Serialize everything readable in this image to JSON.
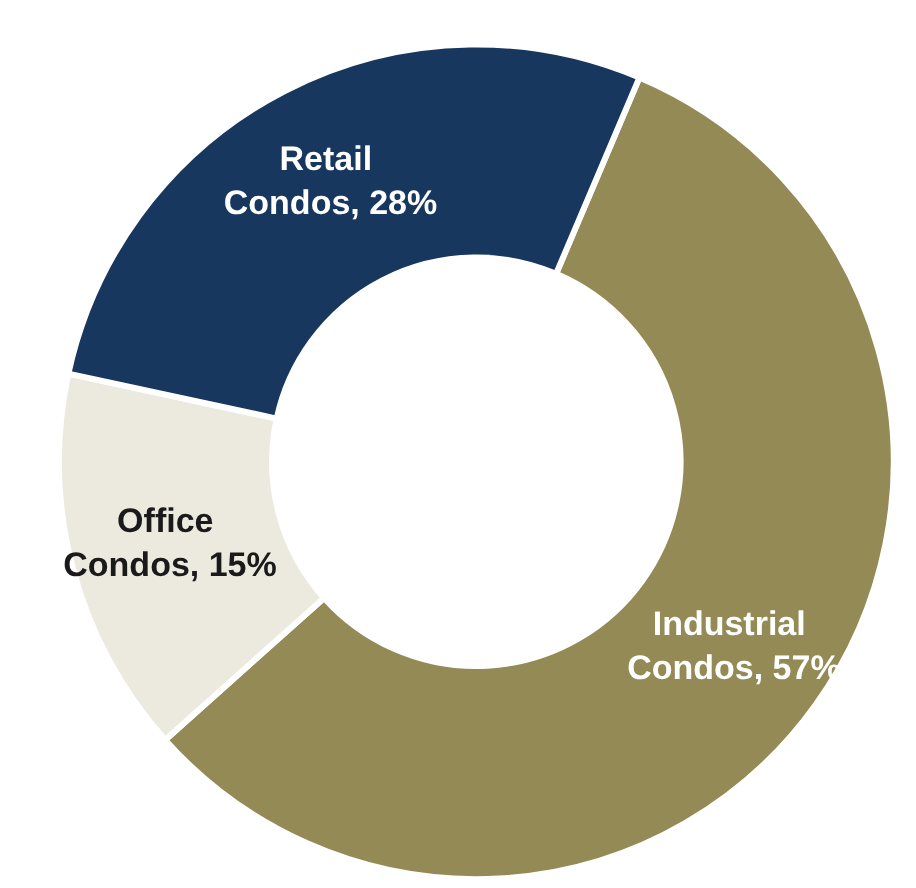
{
  "chart_data": {
    "type": "donut",
    "categories": [
      "Industrial Condos",
      "Office Condos",
      "Retail Condos"
    ],
    "values": [
      57,
      15,
      28
    ],
    "colors": [
      "#938a55",
      "#eceadf",
      "#17375e"
    ],
    "value_labels": [
      "57%",
      "15%",
      "28%"
    ]
  }
}
